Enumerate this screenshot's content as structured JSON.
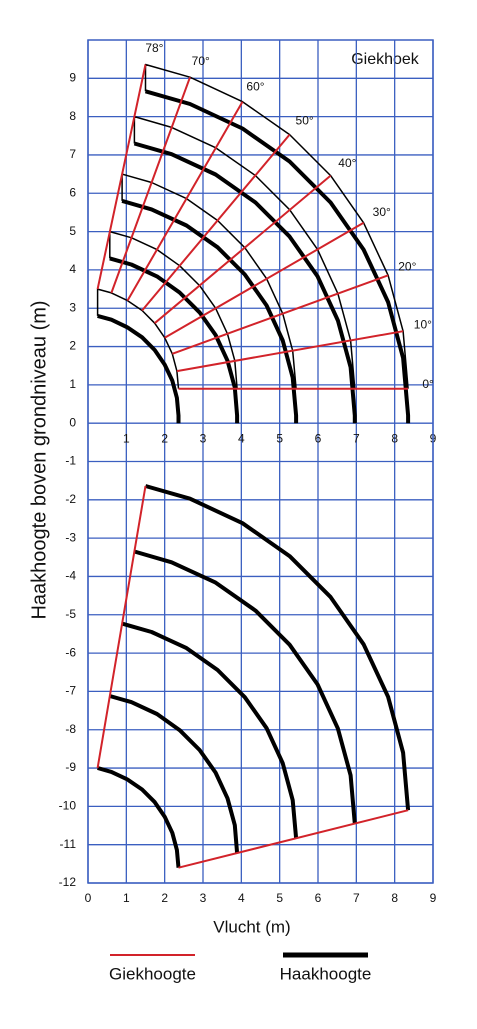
{
  "chart_data": {
    "type": "line",
    "annotation": "Giekhoek",
    "xlabel": "Vlucht (m)",
    "ylabel": "Haakhoogte boven grondniveau (m)",
    "xlim": [
      0,
      9
    ],
    "ylim": [
      -12,
      10
    ],
    "xticks": [
      0,
      1,
      2,
      3,
      4,
      5,
      6,
      7,
      8,
      9
    ],
    "yticks": [
      -12,
      -11,
      -10,
      -9,
      -8,
      -7,
      -6,
      -5,
      -4,
      -3,
      -2,
      -1,
      0,
      1,
      2,
      3,
      4,
      5,
      6,
      7,
      8,
      9
    ],
    "grid": true,
    "grid_color": "#3b5fc0",
    "angle_labels": [
      {
        "value": 78,
        "label": "78°"
      },
      {
        "value": 70,
        "label": "70°"
      },
      {
        "value": 60,
        "label": "60°"
      },
      {
        "value": 50,
        "label": "50°"
      },
      {
        "value": 40,
        "label": "40°"
      },
      {
        "value": 30,
        "label": "30°"
      },
      {
        "value": 20,
        "label": "20°"
      },
      {
        "value": 10,
        "label": "10°"
      },
      {
        "value": 0,
        "label": "0°"
      }
    ],
    "series": [
      {
        "name": "Giekhoogte",
        "color": "#d2232a",
        "width": 2,
        "x": [
          0.25,
          1.5,
          null,
          0.61,
          2.66,
          null,
          1.03,
          4.03,
          null,
          1.41,
          5.26,
          null,
          1.74,
          6.33,
          null,
          2.0,
          7.19,
          null,
          2.2,
          7.83,
          null,
          2.32,
          8.22,
          null,
          2.36,
          8.35,
          null,
          2.36,
          8.35,
          null,
          0.25,
          1.5
        ],
        "y": [
          3.5,
          9.36,
          null,
          3.4,
          9.03,
          null,
          3.2,
          8.39,
          null,
          2.94,
          7.53,
          null,
          2.61,
          6.46,
          null,
          2.23,
          5.23,
          null,
          1.81,
          3.86,
          null,
          1.36,
          2.4,
          null,
          0.9,
          0.9,
          null,
          -11.6,
          -10.1,
          null,
          -9.0,
          -1.64
        ]
      },
      {
        "name": "Haakhoogte",
        "color": "#000000",
        "width": 4,
        "x": [
          1.5,
          2.66,
          4.03,
          5.26,
          6.33,
          7.19,
          7.83,
          8.22,
          8.35,
          8.35,
          null,
          1.21,
          2.18,
          3.33,
          4.37,
          5.26,
          5.99,
          6.52,
          6.85,
          6.96,
          6.96,
          null,
          0.89,
          1.66,
          2.57,
          3.38,
          4.09,
          4.66,
          5.08,
          5.34,
          5.43,
          5.43,
          null,
          0.57,
          1.13,
          1.8,
          2.39,
          2.91,
          3.33,
          3.64,
          3.83,
          3.89,
          3.89,
          null,
          0.25,
          0.61,
          1.03,
          1.41,
          1.74,
          2.0,
          2.2,
          2.32,
          2.36,
          2.36,
          null,
          1.5,
          2.66,
          4.03,
          5.26,
          6.33,
          7.19,
          7.83,
          8.22,
          8.35,
          null,
          1.21,
          2.18,
          3.33,
          4.37,
          5.26,
          5.99,
          6.52,
          6.85,
          6.96,
          null,
          0.89,
          1.66,
          2.57,
          3.38,
          4.09,
          4.66,
          5.08,
          5.34,
          5.43,
          null,
          0.57,
          1.13,
          1.8,
          2.39,
          2.91,
          3.33,
          3.64,
          3.83,
          3.89,
          null,
          0.25,
          0.61,
          1.03,
          1.41,
          1.74,
          2.0,
          2.2,
          2.32,
          2.36
        ],
        "y": [
          8.66,
          8.33,
          7.69,
          6.83,
          5.76,
          4.53,
          3.16,
          1.7,
          0.2,
          0,
          null,
          7.3,
          7.02,
          6.49,
          5.76,
          4.87,
          3.83,
          2.68,
          1.46,
          0.2,
          0,
          null,
          5.8,
          5.58,
          5.16,
          4.59,
          3.88,
          3.07,
          2.16,
          1.19,
          0.2,
          0,
          null,
          4.3,
          4.14,
          3.83,
          3.41,
          2.89,
          2.3,
          1.63,
          0.93,
          0.2,
          0,
          null,
          2.8,
          2.7,
          2.5,
          2.24,
          1.91,
          1.53,
          1.11,
          0.66,
          0.2,
          0,
          null,
          -1.64,
          -1.97,
          -2.61,
          -3.47,
          -4.54,
          -5.77,
          -7.14,
          -8.6,
          -10.1,
          null,
          -3.35,
          -3.63,
          -4.16,
          -4.89,
          -5.78,
          -6.82,
          -7.97,
          -9.19,
          -10.45,
          null,
          -5.23,
          -5.45,
          -5.87,
          -6.44,
          -7.15,
          -7.96,
          -8.87,
          -9.84,
          -10.83,
          null,
          -7.12,
          -7.28,
          -7.59,
          -8.01,
          -8.53,
          -9.12,
          -9.79,
          -10.49,
          -11.22,
          null,
          -9.0,
          -9.1,
          -9.3,
          -9.56,
          -9.89,
          -10.27,
          -10.69,
          -11.14,
          -11.6
        ]
      },
      {
        "color": "#000000",
        "width": 1.5,
        "x": [
          1.5,
          1.5,
          2.66,
          4.03,
          5.26,
          6.33,
          7.19,
          7.83,
          8.22,
          8.35,
          null,
          1.21,
          1.21,
          2.18,
          3.33,
          4.37,
          5.26,
          5.99,
          6.52,
          6.85,
          6.96,
          null,
          0.89,
          0.89,
          1.66,
          2.57,
          3.38,
          4.09,
          4.66,
          5.08,
          5.34,
          5.43,
          null,
          0.57,
          0.57,
          1.13,
          1.8,
          2.39,
          2.91,
          3.33,
          3.64,
          3.83,
          3.89,
          null,
          0.25,
          0.25,
          0.61,
          1.03,
          1.41,
          1.74,
          2.0,
          2.2,
          2.32,
          2.36
        ],
        "y": [
          8.66,
          9.36,
          9.03,
          8.39,
          7.53,
          6.46,
          5.23,
          3.86,
          2.4,
          0.9,
          null,
          7.3,
          8.0,
          7.72,
          7.19,
          6.46,
          5.57,
          4.53,
          3.38,
          2.16,
          0.9,
          null,
          5.8,
          6.5,
          6.28,
          5.86,
          5.29,
          4.58,
          3.77,
          2.86,
          1.89,
          0.9,
          null,
          4.3,
          5.0,
          4.84,
          4.53,
          4.11,
          3.59,
          3.0,
          2.33,
          1.63,
          0.9,
          null,
          2.8,
          3.5,
          3.4,
          3.2,
          2.94,
          2.61,
          2.23,
          1.81,
          1.36,
          0.9
        ]
      }
    ]
  }
}
